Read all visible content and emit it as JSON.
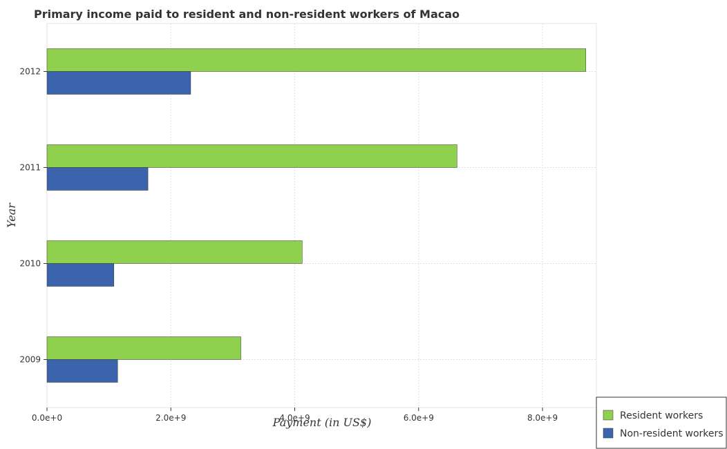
{
  "chart_data": {
    "type": "bar",
    "orientation": "horizontal",
    "title": "Primary income paid to resident and non-resident workers of Macao",
    "xlabel": "Payment (in US$)",
    "ylabel": "Year",
    "categories": [
      "2009",
      "2010",
      "2011",
      "2012"
    ],
    "series": [
      {
        "name": "Resident workers",
        "color": "#8fd14f",
        "values": [
          3130000000,
          4120000000,
          6620000000,
          8700000000
        ]
      },
      {
        "name": "Non-resident workers",
        "color": "#3b64ad",
        "values": [
          1140000000,
          1080000000,
          1630000000,
          2320000000
        ]
      }
    ],
    "xlim": [
      0,
      8870000000
    ],
    "xticks": [
      0,
      2000000000,
      4000000000,
      6000000000,
      8000000000
    ],
    "xtick_labels": [
      "0.0e+0",
      "2.0e+9",
      "4.0e+9",
      "6.0e+9",
      "8.0e+9"
    ],
    "grid": true,
    "legend_position": "bottom-right"
  }
}
